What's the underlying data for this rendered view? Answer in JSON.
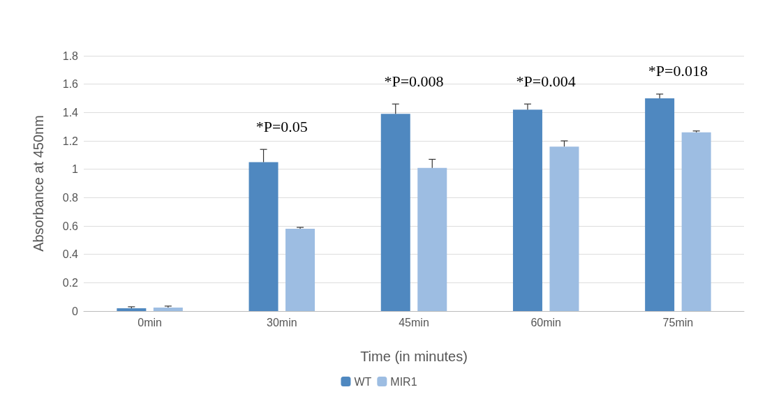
{
  "chart_data": {
    "type": "bar",
    "xlabel": "Time (in minutes)",
    "ylabel": "Absorbance at 450nm",
    "categories": [
      "0min",
      "30min",
      "45min",
      "60min",
      "75min"
    ],
    "series": [
      {
        "name": "WT",
        "color": "#4f88c0",
        "values": [
          0.02,
          1.05,
          1.39,
          1.42,
          1.5
        ],
        "errors": [
          0.01,
          0.09,
          0.07,
          0.04,
          0.03
        ]
      },
      {
        "name": "MIR1",
        "color": "#9dbde2",
        "values": [
          0.025,
          0.58,
          1.01,
          1.16,
          1.26
        ],
        "errors": [
          0.01,
          0.01,
          0.06,
          0.04,
          0.01
        ]
      }
    ],
    "ylim": [
      0,
      1.8
    ],
    "yticks": [
      0,
      0.2,
      0.4,
      0.6,
      0.8,
      1,
      1.2,
      1.4,
      1.6,
      1.8
    ],
    "grid": "y",
    "legend": "bottom",
    "annotations": [
      "*P=0.05",
      "*P=0.008",
      "*P=0.004",
      "*P=0.018"
    ]
  }
}
